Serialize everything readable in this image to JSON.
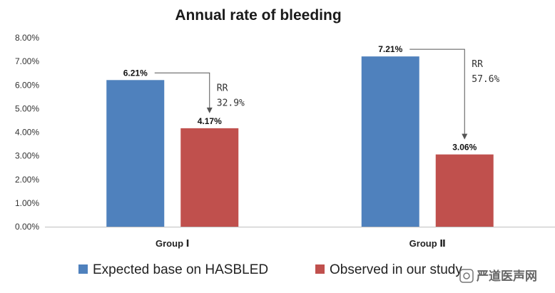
{
  "chart_data": {
    "type": "bar",
    "title": "Annual rate of bleeding",
    "categories": [
      "Group Ⅰ",
      "Group Ⅱ"
    ],
    "series": [
      {
        "name": "Expected base on HASBLED",
        "values": [
          6.21,
          7.21
        ],
        "labels": [
          "6.21%",
          "7.21%"
        ],
        "color": "#4F81BD"
      },
      {
        "name": "Observed in our study",
        "values": [
          4.17,
          3.06
        ],
        "labels": [
          "4.17%",
          "3.06%"
        ],
        "color": "#C0504D"
      }
    ],
    "ylim": [
      0,
      8
    ],
    "yticks": [
      "0.00%",
      "1.00%",
      "2.00%",
      "3.00%",
      "4.00%",
      "5.00%",
      "6.00%",
      "7.00%",
      "8.00%"
    ],
    "grid": false,
    "legend": "bottom",
    "annotations": [
      {
        "category": 0,
        "line1": "RR",
        "line2": "32.9%"
      },
      {
        "category": 1,
        "line1": "RR",
        "line2": "57.6%"
      }
    ],
    "watermark": "严道医声网"
  }
}
